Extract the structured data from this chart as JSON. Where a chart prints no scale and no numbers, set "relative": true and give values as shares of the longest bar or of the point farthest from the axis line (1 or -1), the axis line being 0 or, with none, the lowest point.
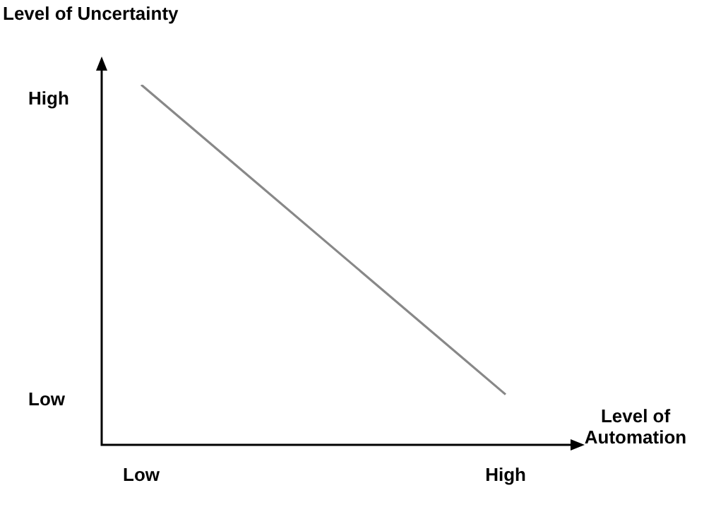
{
  "chart_data": {
    "type": "line",
    "xlabel": "Level of Automation",
    "ylabel": "Level of Uncertainty",
    "relative": true,
    "categories": [
      "Low",
      "High"
    ],
    "values": [
      1,
      0.14
    ],
    "color": "#888888",
    "marker": "none",
    "annotations": [
      "High",
      "Low"
    ]
  }
}
